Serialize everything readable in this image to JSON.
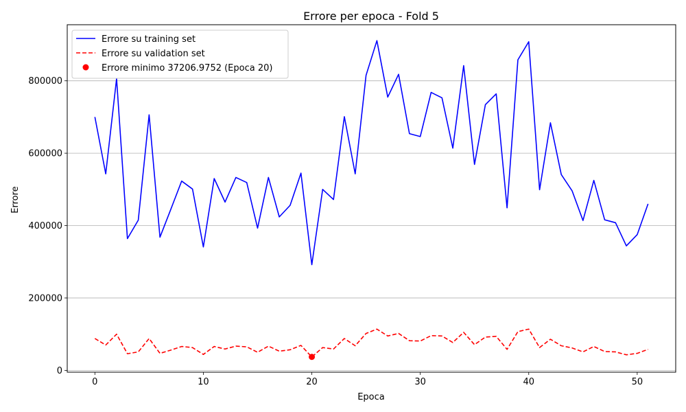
{
  "chart_data": {
    "type": "line",
    "title": "Errore per epoca - Fold 5",
    "xlabel": "Epoca",
    "ylabel": "Errore",
    "xlim": [
      -2.55,
      53.55
    ],
    "ylim": [
      -5000,
      955000
    ],
    "xticks": [
      0,
      10,
      20,
      30,
      40,
      50
    ],
    "yticks": [
      0,
      200000,
      400000,
      600000,
      800000
    ],
    "grid": "y",
    "legend": "top-left",
    "x": [
      0,
      1,
      2,
      3,
      4,
      5,
      6,
      7,
      8,
      9,
      10,
      11,
      12,
      13,
      14,
      15,
      16,
      17,
      18,
      19,
      20,
      21,
      22,
      23,
      24,
      25,
      26,
      27,
      28,
      29,
      30,
      31,
      32,
      33,
      34,
      35,
      36,
      37,
      38,
      39,
      40,
      41,
      42,
      43,
      44,
      45,
      46,
      47,
      48,
      49,
      50,
      51
    ],
    "series": [
      {
        "name": "Errore su training set",
        "color": "#0000ff",
        "style": "solid",
        "values": [
          700000,
          543000,
          806000,
          364000,
          415000,
          706000,
          368000,
          445000,
          523000,
          501000,
          341000,
          530000,
          465000,
          533000,
          519000,
          393000,
          533000,
          424000,
          456000,
          545000,
          292000,
          500000,
          472000,
          701000,
          543000,
          815000,
          911000,
          755000,
          818000,
          654000,
          646000,
          768000,
          753000,
          614000,
          842000,
          569000,
          734000,
          764000,
          449000,
          858000,
          908000,
          499000,
          684000,
          541000,
          496000,
          414000,
          525000,
          416000,
          408000,
          344000,
          375000,
          460000
        ]
      },
      {
        "name": "Errore su validation set",
        "color": "#ff0000",
        "style": "dashed",
        "values": [
          88000,
          70000,
          100000,
          46000,
          51000,
          88000,
          47000,
          56000,
          66000,
          63000,
          44000,
          66000,
          59000,
          67000,
          65000,
          50000,
          67000,
          53000,
          57000,
          69000,
          37000,
          63000,
          59000,
          88000,
          68000,
          102000,
          114000,
          95000,
          102000,
          82000,
          81000,
          96000,
          95000,
          77000,
          105000,
          71000,
          92000,
          94000,
          58000,
          107000,
          114000,
          63000,
          86000,
          68000,
          62000,
          51000,
          66000,
          52000,
          51000,
          43000,
          47000,
          58000
        ]
      }
    ],
    "marker": {
      "name": "Errore minimo 37206.9752 (Epoca 20)",
      "color": "#ff0000",
      "x": 20,
      "y": 37206.9752
    }
  }
}
